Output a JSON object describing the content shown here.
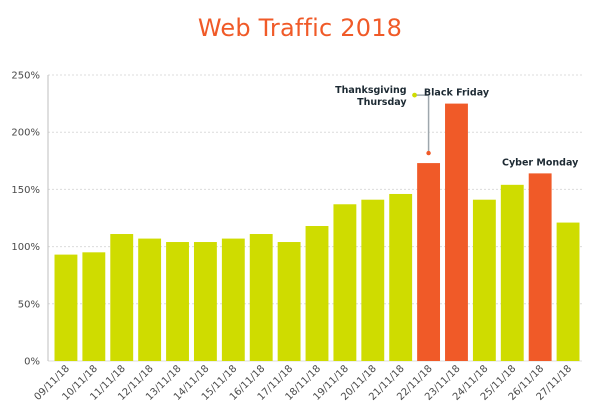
{
  "chart_data": {
    "type": "bar",
    "title": "Web Traffic 2018",
    "xlabel": "",
    "ylabel": "",
    "categories": [
      "09/11/18",
      "10/11/18",
      "11/11/18",
      "12/11/18",
      "13/11/18",
      "14/11/18",
      "15/11/18",
      "16/11/18",
      "17/11/18",
      "18/11/18",
      "19/11/18",
      "20/11/18",
      "21/11/18",
      "22/11/18",
      "23/11/18",
      "24/11/18",
      "25/11/18",
      "26/11/18",
      "27/11/18"
    ],
    "values": [
      93,
      95,
      111,
      107,
      104,
      104,
      107,
      111,
      104,
      118,
      137,
      141,
      146,
      173,
      225,
      141,
      154,
      164,
      121
    ],
    "highlighted": [
      "22/11/18",
      "23/11/18",
      "26/11/18"
    ],
    "ylim": [
      0,
      250
    ],
    "yticks": [
      0,
      50,
      100,
      150,
      200,
      250
    ],
    "ytick_labels": [
      "0%",
      "50%",
      "100%",
      "150%",
      "200%",
      "250%"
    ],
    "grid": true,
    "annotations": [
      {
        "category": "22/11/18",
        "lines": [
          "Thanksgiving",
          "Thursday"
        ]
      },
      {
        "category": "23/11/18",
        "lines": [
          "Black Friday"
        ]
      },
      {
        "category": "26/11/18",
        "lines": [
          "Cyber Monday"
        ]
      }
    ],
    "colors": {
      "normal": "#cfdc00",
      "highlight": "#f05a28",
      "grid": "#dcdcdc",
      "text": "#4a4a4a",
      "annotation": "#1d2a33",
      "connector": "#9ea7ad"
    }
  }
}
